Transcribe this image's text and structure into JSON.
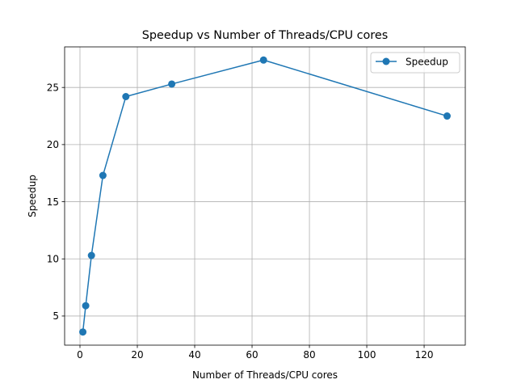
{
  "chart_data": {
    "type": "line",
    "title": "Speedup vs Number of Threads/CPU cores",
    "xlabel": "Number of Threads/CPU cores",
    "ylabel": "Speedup",
    "xlim": [
      -5.35,
      134.35
    ],
    "ylim": [
      2.45,
      28.55
    ],
    "xticks": [
      0,
      20,
      40,
      60,
      80,
      100,
      120
    ],
    "yticks": [
      5,
      10,
      15,
      20,
      25
    ],
    "grid": true,
    "legend_position": "top-right",
    "series": [
      {
        "name": "Speedup",
        "color": "#1f77b4",
        "marker": "circle",
        "x": [
          1,
          2,
          4,
          8,
          16,
          32,
          64,
          128
        ],
        "y": [
          3.6,
          5.9,
          10.3,
          17.3,
          24.2,
          25.3,
          27.4,
          22.5
        ]
      }
    ]
  }
}
